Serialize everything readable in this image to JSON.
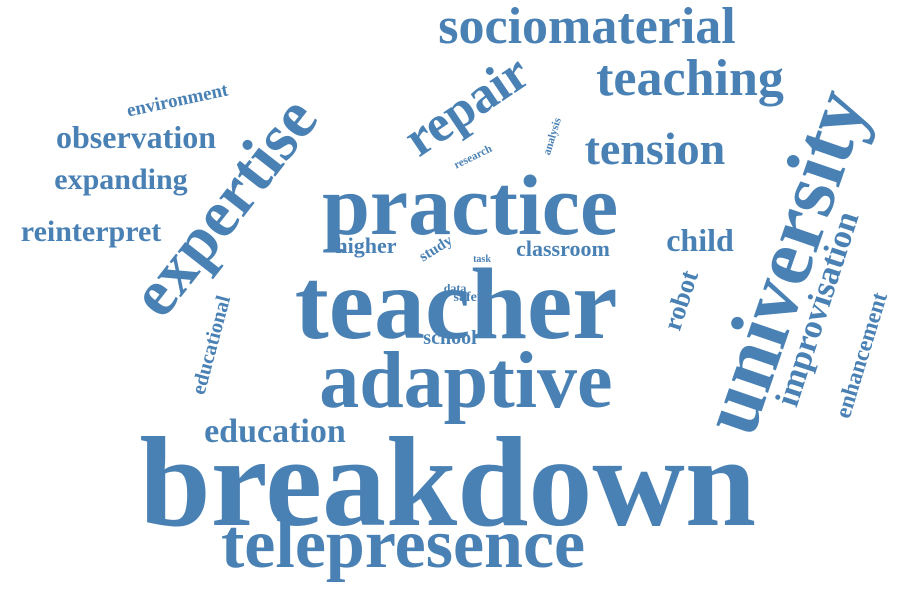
{
  "color": "#4a81b4",
  "background": "#ffffff",
  "words": [
    "breakdown",
    "teacher",
    "practice",
    "expertise",
    "adaptive",
    "telepresence",
    "university",
    "sociomaterial",
    "teaching",
    "repair",
    "tension",
    "improvisation",
    "education",
    "observation",
    "expanding",
    "environment",
    "reinterpret",
    "enhancement",
    "child",
    "robot",
    "educational",
    "higher",
    "classroom",
    "study",
    "school",
    "research",
    "analysis",
    "data",
    "safety",
    "task"
  ]
}
